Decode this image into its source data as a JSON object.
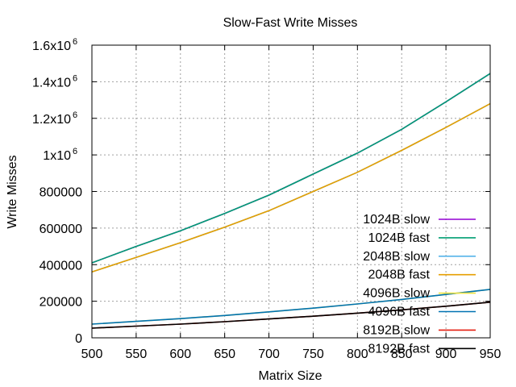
{
  "chart_data": {
    "type": "line",
    "title": "Slow-Fast Write Misses",
    "xlabel": "Matrix Size",
    "ylabel": "Write Misses",
    "xlim": [
      500,
      950
    ],
    "ylim": [
      0,
      1600000
    ],
    "grid": true,
    "legend_position": "bottom-right",
    "x_ticks": [
      {
        "value": 500,
        "label": "500"
      },
      {
        "value": 550,
        "label": "550"
      },
      {
        "value": 600,
        "label": "600"
      },
      {
        "value": 650,
        "label": "650"
      },
      {
        "value": 700,
        "label": "700"
      },
      {
        "value": 750,
        "label": "750"
      },
      {
        "value": 800,
        "label": "800"
      },
      {
        "value": 850,
        "label": "850"
      },
      {
        "value": 900,
        "label": "900"
      },
      {
        "value": 950,
        "label": "950"
      }
    ],
    "y_ticks": [
      {
        "value": 0,
        "label": "0",
        "exp": ""
      },
      {
        "value": 200000,
        "label": "200000",
        "exp": ""
      },
      {
        "value": 400000,
        "label": "400000",
        "exp": ""
      },
      {
        "value": 600000,
        "label": "600000",
        "exp": ""
      },
      {
        "value": 800000,
        "label": "800000",
        "exp": ""
      },
      {
        "value": 1000000,
        "label": "1x10",
        "exp": "6"
      },
      {
        "value": 1200000,
        "label": "1.2x10",
        "exp": "6"
      },
      {
        "value": 1400000,
        "label": "1.4x10",
        "exp": "6"
      },
      {
        "value": 1600000,
        "label": "1.6x10",
        "exp": "6"
      }
    ],
    "x": [
      500,
      550,
      600,
      650,
      700,
      750,
      800,
      850,
      900,
      950
    ],
    "series": [
      {
        "name": "1024B slow",
        "color": "#9400d3",
        "values": [
          410000,
          500000,
          585000,
          680000,
          780000,
          895000,
          1010000,
          1140000,
          1290000,
          1445000
        ]
      },
      {
        "name": "1024B fast",
        "color": "#009e73",
        "values": [
          410000,
          500000,
          585000,
          680000,
          780000,
          895000,
          1010000,
          1140000,
          1290000,
          1445000
        ]
      },
      {
        "name": "2048B slow",
        "color": "#56b4e9",
        "values": [
          360000,
          440000,
          520000,
          605000,
          695000,
          800000,
          905000,
          1025000,
          1150000,
          1280000
        ]
      },
      {
        "name": "2048B fast",
        "color": "#e69f00",
        "values": [
          360000,
          440000,
          520000,
          605000,
          695000,
          800000,
          905000,
          1025000,
          1150000,
          1280000
        ]
      },
      {
        "name": "4096B slow",
        "color": "#f0e442",
        "values": [
          75000,
          90000,
          105000,
          122000,
          142000,
          162000,
          185000,
          210000,
          237000,
          265000
        ]
      },
      {
        "name": "4096B fast",
        "color": "#0072b2",
        "values": [
          75000,
          90000,
          105000,
          122000,
          142000,
          162000,
          185000,
          210000,
          237000,
          265000
        ]
      },
      {
        "name": "8192B slow",
        "color": "#e51e10",
        "values": [
          53000,
          64000,
          75000,
          88000,
          103000,
          118000,
          135000,
          153000,
          173000,
          195000
        ]
      },
      {
        "name": "8192B fast",
        "color": "#000000",
        "values": [
          53000,
          64000,
          75000,
          88000,
          103000,
          118000,
          135000,
          153000,
          173000,
          195000
        ]
      }
    ]
  }
}
